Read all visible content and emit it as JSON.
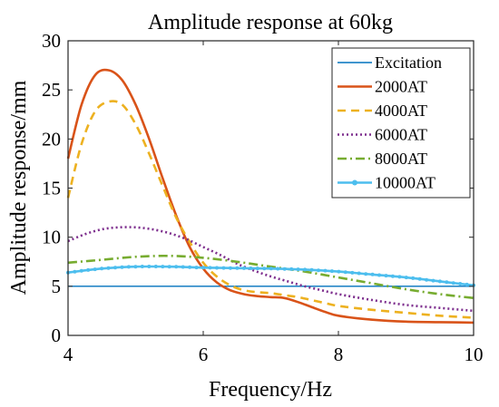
{
  "chart_data": {
    "type": "line",
    "title": "Amplitude response at 60kg",
    "xlabel": "Frequency/Hz",
    "ylabel": "Amplitude response/mm",
    "xlim": [
      4,
      10
    ],
    "ylim": [
      0,
      30
    ],
    "xticks": [
      "4",
      "6",
      "8",
      "10"
    ],
    "yticks": [
      "0",
      "5",
      "10",
      "15",
      "20",
      "25",
      "30"
    ],
    "grid": false,
    "legend_position": "top-right",
    "series": [
      {
        "name": "Excitation",
        "color": "#0072BD",
        "style": "solid",
        "x": [
          4,
          10
        ],
        "y": [
          5,
          5
        ]
      },
      {
        "name": "2000AT",
        "color": "#D95319",
        "style": "solid",
        "x": [
          4.0,
          4.2,
          4.4,
          4.6,
          4.8,
          5.0,
          5.2,
          5.4,
          5.6,
          5.8,
          6.0,
          6.2,
          6.4,
          6.6,
          6.8,
          7.0,
          7.2,
          7.4,
          7.6,
          7.8,
          8.0,
          8.5,
          9.0,
          9.5,
          10.0
        ],
        "y": [
          18.0,
          23.5,
          26.5,
          27.0,
          26.0,
          23.5,
          20.0,
          16.0,
          12.2,
          9.0,
          6.8,
          5.4,
          4.6,
          4.2,
          4.0,
          3.9,
          3.8,
          3.4,
          2.9,
          2.4,
          2.0,
          1.6,
          1.4,
          1.35,
          1.3
        ]
      },
      {
        "name": "4000AT",
        "color": "#EDB120",
        "style": "dashed",
        "x": [
          4.0,
          4.2,
          4.4,
          4.6,
          4.8,
          5.0,
          5.2,
          5.4,
          5.6,
          5.8,
          6.0,
          6.2,
          6.4,
          6.6,
          6.8,
          7.0,
          7.2,
          7.4,
          7.6,
          7.8,
          8.0,
          8.5,
          9.0,
          9.5,
          10.0
        ],
        "y": [
          14.0,
          19.5,
          22.8,
          23.8,
          23.5,
          21.5,
          18.5,
          15.2,
          12.0,
          9.5,
          7.4,
          6.0,
          5.1,
          4.6,
          4.4,
          4.3,
          4.1,
          3.9,
          3.6,
          3.3,
          3.0,
          2.6,
          2.3,
          2.0,
          1.8
        ]
      },
      {
        "name": "6000AT",
        "color": "#7E2F8E",
        "style": "dotted",
        "x": [
          4.0,
          4.25,
          4.5,
          4.75,
          5.0,
          5.25,
          5.5,
          5.75,
          6.0,
          6.25,
          6.5,
          6.75,
          7.0,
          7.25,
          7.5,
          7.75,
          8.0,
          8.5,
          9.0,
          9.5,
          10.0
        ],
        "y": [
          9.6,
          10.3,
          10.8,
          11.0,
          11.0,
          10.8,
          10.4,
          9.8,
          9.0,
          8.2,
          7.3,
          6.6,
          6.0,
          5.5,
          5.0,
          4.6,
          4.2,
          3.6,
          3.1,
          2.8,
          2.5
        ]
      },
      {
        "name": "8000AT",
        "color": "#77AC30",
        "style": "dashdot",
        "x": [
          4.0,
          4.5,
          5.0,
          5.5,
          6.0,
          6.5,
          7.0,
          7.5,
          8.0,
          8.5,
          9.0,
          9.5,
          10.0
        ],
        "y": [
          7.4,
          7.7,
          8.0,
          8.1,
          7.9,
          7.5,
          7.0,
          6.5,
          5.9,
          5.3,
          4.7,
          4.2,
          3.8
        ]
      },
      {
        "name": "10000AT",
        "color": "#4DBEEE",
        "style": "solid-marker",
        "x": [
          4.0,
          4.5,
          5.0,
          5.5,
          6.0,
          6.5,
          7.0,
          7.5,
          8.0,
          8.5,
          9.0,
          9.5,
          10.0
        ],
        "y": [
          6.4,
          6.8,
          7.0,
          7.0,
          6.9,
          6.85,
          6.8,
          6.7,
          6.5,
          6.2,
          5.9,
          5.5,
          5.1
        ]
      }
    ]
  }
}
